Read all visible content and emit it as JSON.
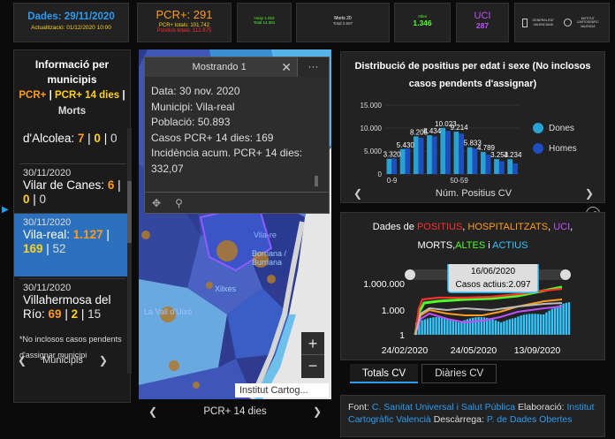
{
  "cards": {
    "dates": {
      "title": "Dades: 29/11/2020",
      "updated": "Actualització: 01/12/2020 10:00"
    },
    "pcr": {
      "title": "PCR+: 291",
      "line1": "PCR+ totals: 101.742",
      "line2": "Positius totals: 112.875"
    },
    "hosp": {
      "line1": "Hosp 1.023",
      "line2": "Total 14.351"
    },
    "mortes": {
      "line1": "Morts 20",
      "line2": "Total 2.607"
    },
    "alt": {
      "label": "Altes",
      "value": "1.346"
    },
    "uci": {
      "label": "UCI",
      "value": "287"
    },
    "logos": {
      "logo1": "GENERALITAT VALENCIANA",
      "logo2": "INSTITUT CARTOGRÀFIC VALENCIÀ"
    }
  },
  "list": {
    "header": "Informació per municipis",
    "legend_pcr": "PCR+",
    "legend_sep1": " | ",
    "legend_pcr14": "PCR+ 14 dies",
    "legend_sep2": " |",
    "legend_morts": "Morts",
    "items": [
      {
        "date": "",
        "name": "d'Alcolea:",
        "v1": "7",
        "v2": "0",
        "v3": "0"
      },
      {
        "date": "30/11/2020",
        "name": "Vilar de Canes:",
        "v1": "6",
        "v2": "0",
        "v3": "0"
      },
      {
        "date": "30/11/2020",
        "name": "Vila-real:",
        "v1": "1.127",
        "v2": "169",
        "v3": "52"
      },
      {
        "date": "30/11/2020",
        "name": "Villahermosa del Río:",
        "v1": "69",
        "v2": "2",
        "v3": "15"
      }
    ],
    "footnote": "*No inclosos casos pendents d'assignar municipi",
    "nav_label": "Municipis"
  },
  "map": {
    "popup_title": "Mostrando 1",
    "popup_lines": [
      "Data: 30 nov. 2020",
      "Municipi: Vila-real",
      "Població: 50.893",
      "Casos PCR+ 14 dies: 169",
      "Incidència acum. PCR+ 14 dies: 332,07"
    ],
    "attribution": "Institut Cartog...",
    "nav_label": "PCR+ 14 dies",
    "labels": [
      "Vila-re",
      "Borriana / Burriana",
      "La Vall d'Uixó",
      "Xilxes"
    ]
  },
  "age_chart": {
    "title": "Distribució de positius per edat i sexe (No inclosos casos pendents d'assignar)",
    "nav_label": "Núm. Positius CV",
    "legend": [
      {
        "name": "Dones",
        "color": "#2aa1d3"
      },
      {
        "name": "Homes",
        "color": "#1e4fbf"
      }
    ],
    "chart_data": {
      "type": "bar",
      "categories": [
        "0-9",
        "",
        "",
        "",
        "",
        "50-59",
        "",
        "",
        "",
        ""
      ],
      "ytick_labels": [
        "15.000",
        "10.000",
        "5.000",
        "0"
      ],
      "ylim": [
        0,
        15000
      ],
      "value_labels": [
        "3.320",
        "5.430",
        "8.205",
        "8.434",
        "10.023",
        "9.214",
        "5.833",
        "4.789",
        "3.254",
        "3.234"
      ],
      "series": [
        {
          "name": "Dones",
          "values": [
            3320,
            5430,
            8205,
            8434,
            10023,
            9214,
            5833,
            4789,
            3254,
            3234
          ]
        },
        {
          "name": "Homes",
          "values": [
            3400,
            5600,
            7900,
            8200,
            9400,
            8800,
            5600,
            4200,
            2800,
            2300
          ]
        }
      ]
    }
  },
  "evo_chart": {
    "title_parts": [
      {
        "text": "Dades de ",
        "color": "#ffffff"
      },
      {
        "text": "POSITIUS",
        "color": "#ff2e2e"
      },
      {
        "text": ", ",
        "color": "#ffffff"
      },
      {
        "text": "HOSPITALITZATS",
        "color": "#ff9b1e"
      },
      {
        "text": ", ",
        "color": "#ffffff"
      },
      {
        "text": "UCI",
        "color": "#c050ff"
      },
      {
        "text": ", MORTS,",
        "color": "#ffffff"
      },
      {
        "text": "ALTES",
        "color": "#4cff2a"
      },
      {
        "text": " i ",
        "color": "#ffffff"
      },
      {
        "text": "ACTIUS",
        "color": "#33c6ff"
      }
    ],
    "tooltip_date": "16/06/2020",
    "tooltip_value": "Casos actius:2.097",
    "yticks": [
      "1.000.000",
      "1.000",
      "1"
    ],
    "xticks": [
      "24/02/2020",
      "24/05/2020",
      "13/09/2020"
    ],
    "tabs": [
      "Totals CV",
      "Diàries CV"
    ],
    "active_tab": 0
  },
  "source": {
    "prefix": "Font: ",
    "font": "C. Sanitat Universal i Salut Pública",
    "elab_label": " Elaboració: ",
    "elab": "Institut Cartogràfic Valencià",
    "desc_label": " Descàrrega: ",
    "desc": "P. de Dades Obertes"
  }
}
